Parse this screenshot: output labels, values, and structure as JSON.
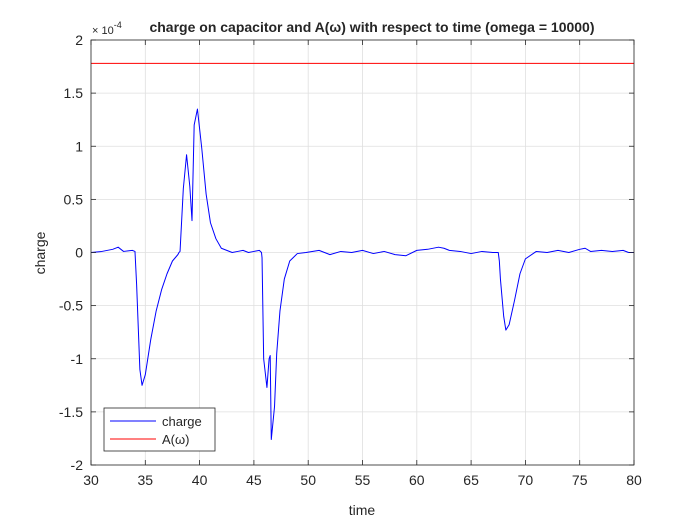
{
  "chart_data": {
    "type": "line",
    "title": "charge on capacitor and A(ω) with respect to time (omega = 10000)",
    "xlabel": "time",
    "ylabel": "charge",
    "xlim": [
      30,
      80
    ],
    "ylim": [
      -2,
      2
    ],
    "y_exponent_label": "× 10",
    "y_exponent_power": "-4",
    "x_ticks": [
      30,
      35,
      40,
      45,
      50,
      55,
      60,
      65,
      70,
      75,
      80
    ],
    "x_tick_labels": [
      "30",
      "35",
      "40",
      "45",
      "50",
      "55",
      "60",
      "65",
      "70",
      "75",
      "80"
    ],
    "y_ticks": [
      -2,
      -1.5,
      -1,
      -0.5,
      0,
      0.5,
      1,
      1.5,
      2
    ],
    "y_tick_labels": [
      "-2",
      "-1.5",
      "-1",
      "-0.5",
      "0",
      "0.5",
      "1",
      "1.5",
      "2"
    ],
    "grid": true,
    "legend_position": "bottom-left",
    "series": [
      {
        "name": "charge",
        "color": "#0000ff",
        "x": [
          30,
          31,
          32,
          32.5,
          33,
          33.8,
          34.05,
          34.2,
          34.5,
          34.7,
          35,
          35.5,
          36,
          36.5,
          37,
          37.5,
          38,
          38.1,
          38.2,
          38.5,
          38.8,
          39.1,
          39.3,
          39.5,
          39.8,
          40.2,
          40.6,
          41,
          41.5,
          42,
          42.5,
          43,
          43.5,
          44,
          44.5,
          45,
          45.5,
          45.7,
          45.75,
          45.9,
          46.2,
          46.4,
          46.5,
          46.55,
          46.6,
          46.9,
          47.1,
          47.4,
          47.8,
          48.3,
          49,
          49.8,
          51,
          52,
          53,
          54,
          55,
          56,
          57,
          58,
          59,
          60,
          61,
          62,
          62.5,
          63,
          64,
          65,
          66,
          67,
          67.5,
          67.6,
          67.7,
          68,
          68.2,
          68.5,
          69,
          69.5,
          70,
          71,
          72,
          73,
          74,
          75,
          75.5,
          76,
          77,
          78,
          79,
          79.5,
          80
        ],
        "y": [
          0,
          0.01,
          0.03,
          0.05,
          0.01,
          0.02,
          0.01,
          -0.3,
          -1.1,
          -1.25,
          -1.15,
          -0.82,
          -0.55,
          -0.35,
          -0.2,
          -0.08,
          -0.02,
          0,
          0.01,
          0.6,
          0.92,
          0.62,
          0.3,
          1.2,
          1.35,
          0.98,
          0.55,
          0.28,
          0.13,
          0.04,
          0.02,
          0.0,
          0.01,
          0.02,
          0.0,
          0.01,
          0.02,
          0.0,
          -0.05,
          -1.0,
          -1.27,
          -1.0,
          -0.97,
          -1.35,
          -1.76,
          -1.45,
          -0.95,
          -0.55,
          -0.25,
          -0.08,
          -0.01,
          0.0,
          0.02,
          -0.02,
          0.01,
          0.0,
          0.02,
          -0.01,
          0.01,
          -0.02,
          -0.03,
          0.02,
          0.03,
          0.05,
          0.04,
          0.02,
          0.01,
          -0.01,
          0.01,
          0.0,
          0.0,
          -0.08,
          -0.25,
          -0.6,
          -0.73,
          -0.68,
          -0.45,
          -0.2,
          -0.06,
          0.01,
          0.0,
          0.02,
          0.0,
          0.03,
          0.04,
          0.01,
          0.02,
          0.01,
          0.02,
          0.0,
          0.0
        ]
      },
      {
        "name": "A(ω)",
        "color": "#ff0000",
        "x": [
          30,
          80
        ],
        "y": [
          1.78,
          1.78
        ]
      }
    ]
  }
}
